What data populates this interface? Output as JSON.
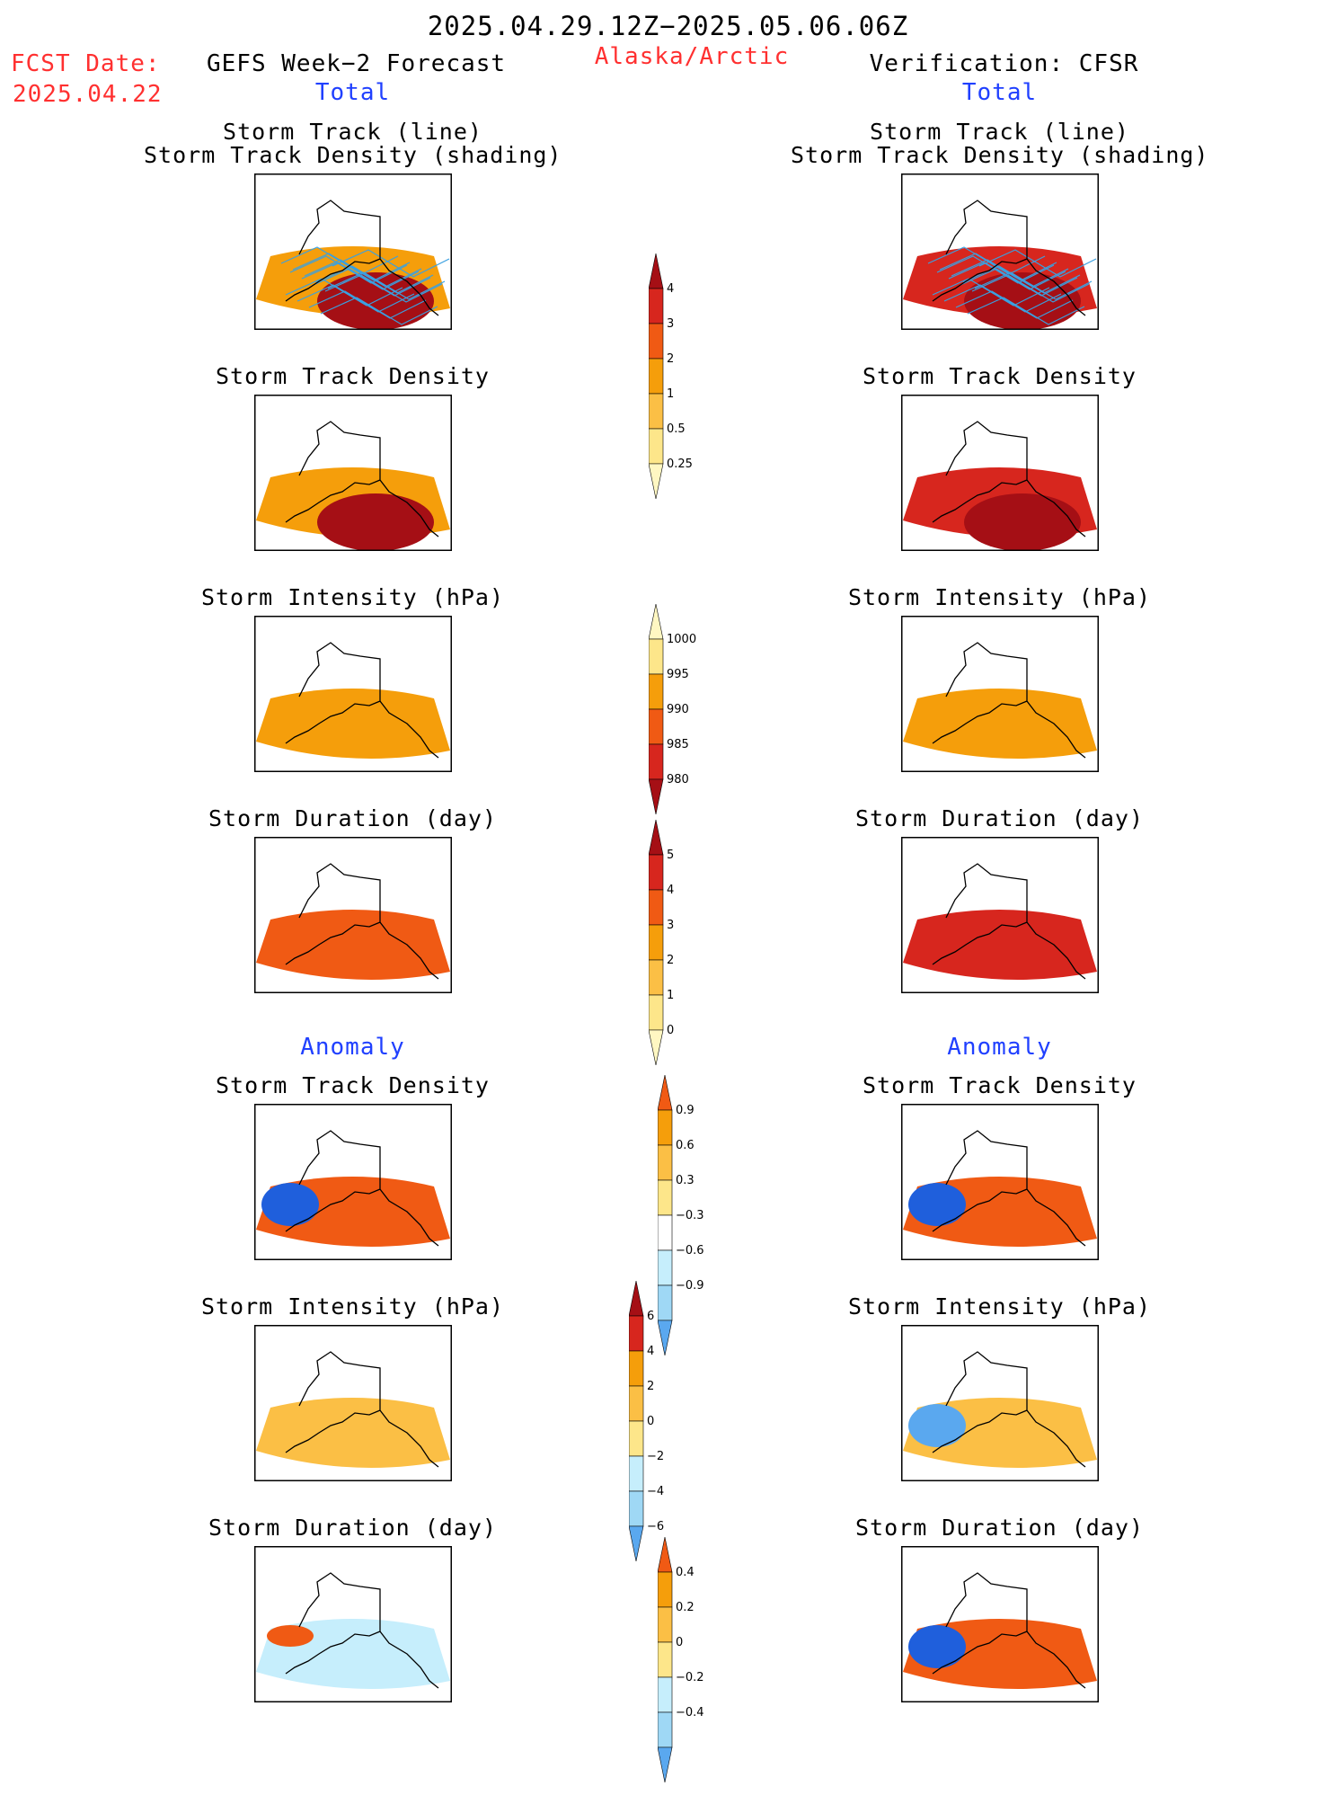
{
  "header": {
    "period": "2025.04.29.12Z−2025.05.06.06Z",
    "fcst_label": "FCST Date:",
    "fcst_date": "2025.04.22",
    "left_title": "GEFS Week−2 Forecast",
    "region": "Alaska/Arctic",
    "right_title": "Verification: CFSR",
    "total_label": "Total",
    "anomaly_label": "Anomaly"
  },
  "panel_titles": {
    "track_line": "Storm Track (line)",
    "track_shading": "Storm Track Density (shading)",
    "density": "Storm Track Density",
    "intensity": "Storm Intensity (hPa)",
    "duration": "Storm Duration (day)"
  },
  "colors": {
    "c_darkred": "#a50f15",
    "c_red": "#d7261e",
    "c_orangered": "#f05a14",
    "c_orange": "#f59e0b",
    "c_lightorange": "#fbbf45",
    "c_yellow": "#fde68a",
    "c_paleyellow": "#fff7c2",
    "b_pale": "#c6eefc",
    "b_light": "#9fd8f5",
    "b_mid": "#5aa8ef",
    "b_dark": "#1f5fdc",
    "track": "#3aa0e0"
  },
  "chart_data": [
    {
      "type": "heatmap",
      "title": "Storm Track (line) / Storm Track Density (shading)",
      "column": "GEFS Week−2 Forecast",
      "section": "Total",
      "overlay": "storm track lines",
      "fill_level": "c_orange",
      "core_level": "c_darkred"
    },
    {
      "type": "heatmap",
      "title": "Storm Track (line) / Storm Track Density (shading)",
      "column": "Verification: CFSR",
      "section": "Total",
      "overlay": "storm track lines",
      "fill_level": "c_red",
      "core_level": "c_darkred"
    },
    {
      "type": "heatmap",
      "title": "Storm Track Density",
      "column": "GEFS Week−2 Forecast",
      "section": "Total",
      "fill_level": "c_orange",
      "core_level": "c_darkred"
    },
    {
      "type": "heatmap",
      "title": "Storm Track Density",
      "column": "Verification: CFSR",
      "section": "Total",
      "fill_level": "c_red",
      "core_level": "c_darkred"
    },
    {
      "type": "heatmap",
      "title": "Storm Intensity (hPa)",
      "column": "GEFS Week−2 Forecast",
      "section": "Total",
      "fill_level": "c_orange"
    },
    {
      "type": "heatmap",
      "title": "Storm Intensity (hPa)",
      "column": "Verification: CFSR",
      "section": "Total",
      "fill_level": "c_orange"
    },
    {
      "type": "heatmap",
      "title": "Storm Duration (day)",
      "column": "GEFS Week−2 Forecast",
      "section": "Total",
      "fill_level": "c_orangered"
    },
    {
      "type": "heatmap",
      "title": "Storm Duration (day)",
      "column": "Verification: CFSR",
      "section": "Total",
      "fill_level": "c_red"
    },
    {
      "type": "heatmap",
      "title": "Storm Track Density",
      "column": "GEFS Week−2 Forecast",
      "section": "Anomaly",
      "fill_level": "c_orangered",
      "negative_level": "b_dark"
    },
    {
      "type": "heatmap",
      "title": "Storm Track Density",
      "column": "Verification: CFSR",
      "section": "Anomaly",
      "fill_level": "c_orangered",
      "negative_level": "b_dark"
    },
    {
      "type": "heatmap",
      "title": "Storm Intensity (hPa)",
      "column": "GEFS Week−2 Forecast",
      "section": "Anomaly",
      "fill_level": "c_lightorange"
    },
    {
      "type": "heatmap",
      "title": "Storm Intensity (hPa)",
      "column": "Verification: CFSR",
      "section": "Anomaly",
      "fill_level": "c_lightorange",
      "negative_level": "b_mid"
    },
    {
      "type": "heatmap",
      "title": "Storm Duration (day)",
      "column": "GEFS Week−2 Forecast",
      "section": "Anomaly",
      "fill_level": "b_pale",
      "positive_level": "c_orangered"
    },
    {
      "type": "heatmap",
      "title": "Storm Duration (day)",
      "column": "Verification: CFSR",
      "section": "Anomaly",
      "fill_level": "c_orangered",
      "negative_level": "b_dark"
    }
  ],
  "colorbars": [
    {
      "name": "track-density-total",
      "ticks": [
        "4",
        "3",
        "2",
        "1",
        "0.5",
        "0.25"
      ],
      "colors": [
        "c_darkred",
        "c_red",
        "c_orangered",
        "c_orange",
        "c_lightorange",
        "c_yellow",
        "c_paleyellow"
      ]
    },
    {
      "name": "intensity-total",
      "ticks": [
        "1000",
        "995",
        "990",
        "985",
        "980"
      ],
      "colors": [
        "c_paleyellow",
        "c_yellow",
        "c_orange",
        "c_orangered",
        "c_red",
        "c_darkred"
      ]
    },
    {
      "name": "duration-total",
      "ticks": [
        "5",
        "4",
        "3",
        "2",
        "1",
        "0"
      ],
      "colors": [
        "c_darkred",
        "c_red",
        "c_orangered",
        "c_orange",
        "c_lightorange",
        "c_yellow",
        "c_paleyellow"
      ]
    },
    {
      "name": "track-density-anomaly",
      "ticks": [
        "0.9",
        "0.6",
        "0.3",
        "−0.3",
        "−0.6",
        "−0.9"
      ],
      "colors": [
        "c_orangered",
        "c_orange",
        "c_lightorange",
        "c_yellow",
        "white",
        "b_pale",
        "b_light",
        "b_mid"
      ]
    },
    {
      "name": "intensity-anomaly",
      "ticks": [
        "6",
        "4",
        "2",
        "0",
        "−2",
        "−4",
        "−6"
      ],
      "colors": [
        "c_darkred",
        "c_red",
        "c_orange",
        "c_lightorange",
        "c_yellow",
        "b_pale",
        "b_light",
        "b_mid"
      ]
    },
    {
      "name": "duration-anomaly",
      "ticks": [
        "0.4",
        "0.2",
        "0",
        "−0.2",
        "−0.4"
      ],
      "colors": [
        "c_orangered",
        "c_orange",
        "c_lightorange",
        "c_yellow",
        "b_pale",
        "b_light",
        "b_mid"
      ]
    }
  ]
}
